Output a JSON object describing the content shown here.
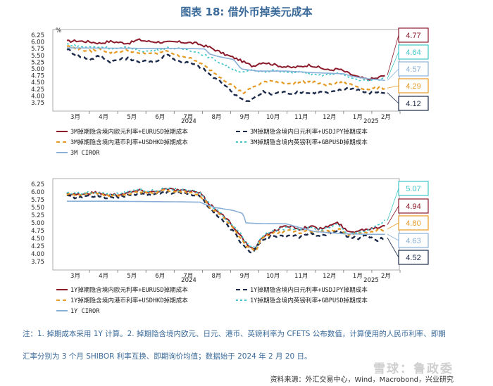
{
  "title": "图表 18: 借外币掉美元成本",
  "notes": [
    "注：1. 掉期成本采用 1Y 计算。2. 掉期隐含境内欧元、日元、港币、英镑利率为 CFETS 公布数值，计算使用的人民币利率、即期",
    "汇率分别为 3 个月 SHIBOR 利率互换、即期询价均值；数据始于 2024 年 2 月 20 日。"
  ],
  "source": "资料来源：外汇交易中心，Wind，Macrobond，兴业研究",
  "watermark": "雪球：鲁政委",
  "colors": {
    "eur": "#8b1a2b",
    "jpy": "#1c2a4a",
    "hkd": "#e59a24",
    "gbp": "#3ec6c9",
    "ciror": "#8ab0d8"
  },
  "chart_data": [
    {
      "type": "line",
      "unit_label": "%",
      "ylim": [
        3.75,
        6.25
      ],
      "yticks": [
        "6.25",
        "6.00",
        "5.75",
        "5.50",
        "5.25",
        "5.00",
        "4.75",
        "4.50",
        "4.25",
        "4.00",
        "3.75"
      ],
      "x_months": [
        "3月",
        "4月",
        "5月",
        "6月",
        "7月",
        "8月",
        "9月",
        "10月",
        "11月",
        "12月",
        "1月",
        "2月"
      ],
      "year_labels": [
        "2024",
        "2025"
      ],
      "legend": [
        "3M掉期隐含境内欧元利率+EURUSD掉期成本",
        "3M掉期隐含境内日元利率+USDJPY掉期成本",
        "3M掉期隐含境内港币利率+USDHKD掉期成本",
        "3M掉期隐含境内英镑利率+GBPUSD掉期成本",
        "3M CIROR"
      ],
      "callouts": [
        "4.77",
        "4.64",
        "4.57",
        "4.29",
        "4.12"
      ],
      "series_keys": [
        "eur",
        "jpy",
        "hkd",
        "gbp",
        "ciror"
      ],
      "knots": {
        "eur": [
          [
            0,
            6.02
          ],
          [
            10,
            6.04
          ],
          [
            25,
            6.0
          ],
          [
            35,
            5.95
          ],
          [
            45,
            6.02
          ],
          [
            55,
            5.98
          ],
          [
            65,
            5.95
          ],
          [
            75,
            6.08
          ],
          [
            85,
            6.02
          ],
          [
            95,
            6.0
          ],
          [
            105,
            5.98
          ],
          [
            115,
            6.0
          ],
          [
            125,
            5.98
          ],
          [
            135,
            5.95
          ],
          [
            145,
            5.85
          ],
          [
            150,
            5.8
          ],
          [
            165,
            5.55
          ],
          [
            180,
            5.35
          ],
          [
            195,
            5.1
          ],
          [
            205,
            5.25
          ],
          [
            215,
            5.18
          ],
          [
            225,
            5.1
          ],
          [
            235,
            5.05
          ],
          [
            245,
            5.08
          ],
          [
            255,
            5.15
          ],
          [
            265,
            5.05
          ],
          [
            275,
            4.95
          ],
          [
            285,
            5.0
          ],
          [
            295,
            4.85
          ],
          [
            305,
            4.7
          ],
          [
            315,
            4.62
          ],
          [
            325,
            4.65
          ],
          [
            330,
            4.72
          ],
          [
            335,
            4.77
          ]
        ],
        "jpy": [
          [
            0,
            5.75
          ],
          [
            10,
            5.5
          ],
          [
            25,
            5.35
          ],
          [
            35,
            5.5
          ],
          [
            45,
            5.25
          ],
          [
            55,
            5.35
          ],
          [
            65,
            5.4
          ],
          [
            75,
            5.25
          ],
          [
            85,
            5.3
          ],
          [
            95,
            5.28
          ],
          [
            105,
            5.55
          ],
          [
            115,
            5.3
          ],
          [
            125,
            5.25
          ],
          [
            135,
            5.15
          ],
          [
            145,
            4.95
          ],
          [
            155,
            4.65
          ],
          [
            165,
            4.45
          ],
          [
            175,
            4.1
          ],
          [
            185,
            3.85
          ],
          [
            190,
            3.78
          ],
          [
            198,
            3.95
          ],
          [
            206,
            4.15
          ],
          [
            215,
            4.05
          ],
          [
            225,
            4.15
          ],
          [
            235,
            4.1
          ],
          [
            245,
            4.15
          ],
          [
            255,
            4.1
          ],
          [
            265,
            4.15
          ],
          [
            275,
            4.1
          ],
          [
            285,
            4.2
          ],
          [
            295,
            4.3
          ],
          [
            305,
            4.25
          ],
          [
            315,
            4.1
          ],
          [
            325,
            4.15
          ],
          [
            335,
            4.12
          ]
        ],
        "hkd": [
          [
            0,
            5.85
          ],
          [
            10,
            5.75
          ],
          [
            25,
            5.65
          ],
          [
            35,
            5.75
          ],
          [
            45,
            5.6
          ],
          [
            55,
            5.65
          ],
          [
            65,
            5.7
          ],
          [
            75,
            5.55
          ],
          [
            85,
            5.6
          ],
          [
            95,
            5.55
          ],
          [
            105,
            5.7
          ],
          [
            115,
            5.5
          ],
          [
            125,
            5.45
          ],
          [
            135,
            5.3
          ],
          [
            145,
            5.1
          ],
          [
            155,
            4.85
          ],
          [
            165,
            4.6
          ],
          [
            175,
            4.35
          ],
          [
            185,
            4.1
          ],
          [
            195,
            4.3
          ],
          [
            205,
            4.5
          ],
          [
            215,
            4.55
          ],
          [
            225,
            4.5
          ],
          [
            235,
            4.45
          ],
          [
            245,
            4.5
          ],
          [
            255,
            4.55
          ],
          [
            265,
            4.45
          ],
          [
            275,
            4.4
          ],
          [
            285,
            4.5
          ],
          [
            295,
            4.45
          ],
          [
            305,
            4.35
          ],
          [
            315,
            4.25
          ],
          [
            325,
            4.3
          ],
          [
            335,
            4.29
          ]
        ],
        "gbp": [
          [
            0,
            5.92
          ],
          [
            10,
            5.85
          ],
          [
            25,
            5.8
          ],
          [
            35,
            5.82
          ],
          [
            45,
            5.78
          ],
          [
            55,
            5.75
          ],
          [
            65,
            5.8
          ],
          [
            75,
            5.7
          ],
          [
            85,
            5.65
          ],
          [
            95,
            5.72
          ],
          [
            105,
            5.78
          ],
          [
            115,
            5.75
          ],
          [
            125,
            5.72
          ],
          [
            135,
            5.65
          ],
          [
            145,
            5.5
          ],
          [
            155,
            5.35
          ],
          [
            165,
            5.15
          ],
          [
            175,
            5.0
          ],
          [
            185,
            4.85
          ],
          [
            195,
            4.95
          ],
          [
            205,
            4.9
          ],
          [
            215,
            4.95
          ],
          [
            225,
            4.9
          ],
          [
            235,
            4.85
          ],
          [
            245,
            4.9
          ],
          [
            255,
            4.8
          ],
          [
            265,
            4.75
          ],
          [
            275,
            4.8
          ],
          [
            285,
            4.85
          ],
          [
            295,
            4.7
          ],
          [
            305,
            4.6
          ],
          [
            315,
            4.55
          ],
          [
            325,
            4.6
          ],
          [
            335,
            4.64
          ]
        ],
        "ciror": [
          [
            0,
            5.78
          ],
          [
            40,
            5.77
          ],
          [
            80,
            5.76
          ],
          [
            120,
            5.76
          ],
          [
            145,
            5.74
          ],
          [
            150,
            5.55
          ],
          [
            160,
            5.45
          ],
          [
            175,
            5.35
          ],
          [
            183,
            5.0
          ],
          [
            200,
            4.92
          ],
          [
            230,
            4.92
          ],
          [
            260,
            4.86
          ],
          [
            290,
            4.82
          ],
          [
            300,
            4.72
          ],
          [
            315,
            4.64
          ],
          [
            335,
            4.57
          ]
        ]
      }
    },
    {
      "type": "line",
      "ylim": [
        3.75,
        6.25
      ],
      "yticks": [
        "6.25",
        "6.00",
        "5.75",
        "5.50",
        "5.25",
        "5.00",
        "4.75",
        "4.50",
        "4.25",
        "4.00",
        "3.75"
      ],
      "x_months": [
        "3月",
        "4月",
        "5月",
        "6月",
        "7月",
        "8月",
        "9月",
        "10月",
        "11月",
        "12月",
        "1月",
        "2月"
      ],
      "year_labels": [
        "2024",
        "2025"
      ],
      "legend": [
        "1Y掉期隐含境内欧元利率+EURUSD掉期成本",
        "1Y掉期隐含境内日元利率+USDJPY掉期成本",
        "1Y掉期隐含境内港币利率+USDHKD掉期成本",
        "1Y掉期隐含境内英镑利率+GBPUSD掉期成本",
        "1Y CIROR"
      ],
      "callouts": [
        "5.07",
        "4.94",
        "4.80",
        "4.63",
        "4.52"
      ],
      "series_keys": [
        "eur",
        "jpy",
        "hkd",
        "gbp",
        "ciror"
      ],
      "knots": {
        "eur": [
          [
            0,
            5.95
          ],
          [
            15,
            5.92
          ],
          [
            30,
            5.98
          ],
          [
            45,
            5.9
          ],
          [
            60,
            5.95
          ],
          [
            75,
            6.05
          ],
          [
            90,
            6.0
          ],
          [
            105,
            6.1
          ],
          [
            120,
            6.05
          ],
          [
            135,
            6.0
          ],
          [
            140,
            5.95
          ],
          [
            150,
            5.6
          ],
          [
            160,
            5.35
          ],
          [
            170,
            5.05
          ],
          [
            180,
            4.7
          ],
          [
            190,
            4.25
          ],
          [
            198,
            4.15
          ],
          [
            205,
            4.55
          ],
          [
            215,
            4.7
          ],
          [
            225,
            4.85
          ],
          [
            235,
            4.9
          ],
          [
            245,
            4.8
          ],
          [
            255,
            4.9
          ],
          [
            265,
            4.8
          ],
          [
            275,
            4.9
          ],
          [
            285,
            5.0
          ],
          [
            295,
            4.7
          ],
          [
            305,
            4.75
          ],
          [
            315,
            4.8
          ],
          [
            325,
            4.85
          ],
          [
            335,
            4.94
          ]
        ],
        "jpy": [
          [
            0,
            5.85
          ],
          [
            15,
            5.82
          ],
          [
            30,
            5.88
          ],
          [
            45,
            5.8
          ],
          [
            60,
            5.85
          ],
          [
            75,
            5.95
          ],
          [
            90,
            5.9
          ],
          [
            105,
            6.0
          ],
          [
            120,
            5.95
          ],
          [
            135,
            5.9
          ],
          [
            140,
            5.85
          ],
          [
            150,
            5.45
          ],
          [
            160,
            5.2
          ],
          [
            170,
            4.9
          ],
          [
            180,
            4.5
          ],
          [
            188,
            4.15
          ],
          [
            195,
            4.05
          ],
          [
            205,
            4.4
          ],
          [
            215,
            4.6
          ],
          [
            225,
            4.55
          ],
          [
            235,
            4.6
          ],
          [
            245,
            4.55
          ],
          [
            255,
            4.65
          ],
          [
            265,
            4.6
          ],
          [
            275,
            4.65
          ],
          [
            285,
            4.75
          ],
          [
            295,
            4.55
          ],
          [
            305,
            4.5
          ],
          [
            315,
            4.6
          ],
          [
            325,
            4.45
          ],
          [
            335,
            4.52
          ]
        ],
        "hkd": [
          [
            0,
            5.92
          ],
          [
            15,
            5.9
          ],
          [
            30,
            5.95
          ],
          [
            45,
            5.85
          ],
          [
            60,
            5.9
          ],
          [
            75,
            6.0
          ],
          [
            90,
            5.98
          ],
          [
            105,
            6.05
          ],
          [
            120,
            6.0
          ],
          [
            135,
            5.95
          ],
          [
            140,
            5.9
          ],
          [
            150,
            5.5
          ],
          [
            160,
            5.3
          ],
          [
            170,
            5.0
          ],
          [
            180,
            4.6
          ],
          [
            190,
            4.2
          ],
          [
            198,
            4.1
          ],
          [
            205,
            4.5
          ],
          [
            215,
            4.65
          ],
          [
            225,
            4.7
          ],
          [
            235,
            4.75
          ],
          [
            245,
            4.7
          ],
          [
            255,
            4.75
          ],
          [
            265,
            4.7
          ],
          [
            275,
            4.75
          ],
          [
            285,
            4.8
          ],
          [
            295,
            4.6
          ],
          [
            305,
            4.65
          ],
          [
            315,
            4.7
          ],
          [
            325,
            4.75
          ],
          [
            335,
            4.8
          ]
        ],
        "gbp": [
          [
            0,
            5.97
          ],
          [
            15,
            5.95
          ],
          [
            30,
            6.0
          ],
          [
            45,
            5.92
          ],
          [
            60,
            5.97
          ],
          [
            75,
            6.07
          ],
          [
            90,
            6.03
          ],
          [
            105,
            6.1
          ],
          [
            120,
            6.06
          ],
          [
            135,
            6.02
          ],
          [
            140,
            5.97
          ],
          [
            150,
            5.62
          ],
          [
            160,
            5.35
          ],
          [
            170,
            5.05
          ],
          [
            180,
            4.75
          ],
          [
            190,
            4.3
          ],
          [
            198,
            4.2
          ],
          [
            205,
            4.6
          ],
          [
            215,
            4.72
          ],
          [
            225,
            4.8
          ],
          [
            235,
            4.85
          ],
          [
            245,
            4.78
          ],
          [
            255,
            4.85
          ],
          [
            265,
            4.78
          ],
          [
            275,
            4.85
          ],
          [
            285,
            4.95
          ],
          [
            295,
            4.65
          ],
          [
            305,
            4.7
          ],
          [
            315,
            4.75
          ],
          [
            325,
            4.9
          ],
          [
            335,
            5.07
          ]
        ],
        "ciror": [
          [
            0,
            5.7
          ],
          [
            40,
            5.7
          ],
          [
            80,
            5.69
          ],
          [
            120,
            5.68
          ],
          [
            140,
            5.67
          ],
          [
            145,
            5.6
          ],
          [
            155,
            5.5
          ],
          [
            175,
            5.4
          ],
          [
            185,
            5.3
          ],
          [
            188,
            5.0
          ],
          [
            200,
            4.98
          ],
          [
            230,
            4.97
          ],
          [
            260,
            4.72
          ],
          [
            290,
            4.65
          ],
          [
            315,
            4.63
          ],
          [
            335,
            4.63
          ]
        ]
      }
    }
  ]
}
